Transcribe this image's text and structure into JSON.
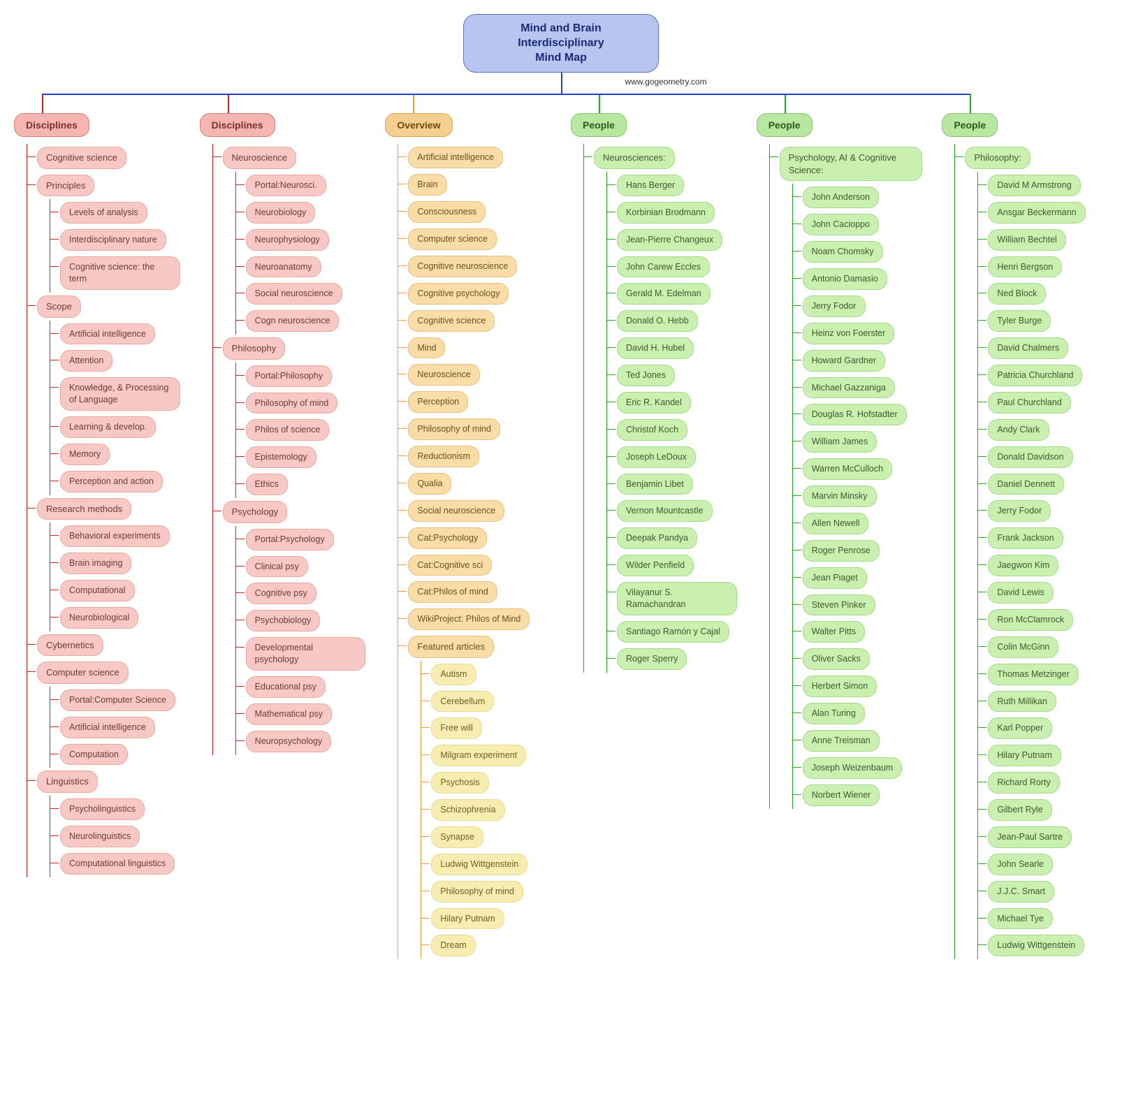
{
  "title": "Mind and Brain Interdisciplinary\nMind Map",
  "attribution": "www.gogeometry.com",
  "root_style": {
    "bg": "#b8c5ef",
    "border": "#5a6fc7",
    "text": "#1a2a7a"
  },
  "hbar_color": "#2244cc",
  "branches": [
    {
      "label": "Disciplines",
      "connector_color": "#cc2222",
      "header_style": {
        "bg": "#f5b5b0",
        "border": "#d97a72",
        "text": "#7a3030"
      },
      "node_style": {
        "bg": "#f8c9c4",
        "border": "#e8a8a0",
        "text": "#6a3a3a"
      },
      "groups": [
        {
          "label": "Cognitive science",
          "items": []
        },
        {
          "label": "Principles",
          "items": [
            "Levels of analysis",
            "Interdisciplinary nature",
            "Cognitive science: the term"
          ]
        },
        {
          "label": "Scope",
          "items": [
            "Artificial intelligence",
            "Attention",
            "Knowledge, & Processing of Language",
            "Learning & develop.",
            "Memory",
            "Perception and action"
          ]
        },
        {
          "label": "Research methods",
          "items": [
            "Behavioral experiments",
            "Brain imaging",
            "Computational",
            "Neurobiological"
          ]
        },
        {
          "label": "Cybernetics",
          "items": []
        },
        {
          "label": "Computer science",
          "items": [
            "Portal:Computer Science",
            "Artificial intelligence",
            "Computation"
          ]
        },
        {
          "label": "Linguistics",
          "items": [
            "Psycholinguistics",
            "Neurolinguistics",
            "Computational linguistics"
          ]
        }
      ]
    },
    {
      "label": "Disciplines",
      "connector_color": "#cc2222",
      "header_style": {
        "bg": "#f5b5b0",
        "border": "#d97a72",
        "text": "#7a3030"
      },
      "node_style": {
        "bg": "#f8c9c4",
        "border": "#e8a8a0",
        "text": "#6a3a3a"
      },
      "groups": [
        {
          "label": "Neuroscience",
          "items": [
            "Portal:Neurosci.",
            "Neurobiology",
            "Neurophysiology",
            "Neuroanatomy",
            "Social neuroscience",
            "Cogn neuroscience"
          ]
        },
        {
          "label": "Philosophy",
          "items": [
            "Portal:Philosophy",
            "Philosophy of mind",
            "Philos of science",
            "Epistemology",
            "Ethics"
          ]
        },
        {
          "label": "Psychology",
          "items": [
            "Portal:Psychology",
            "Clinical psy",
            "Cognitive psy",
            "Psychobiology",
            "Developmental psychology",
            "Educational psy",
            "Mathematical psy",
            "Neuropsychology"
          ]
        }
      ]
    },
    {
      "label": "Overview",
      "connector_color": "#e8a030",
      "header_style": {
        "bg": "#f5cf90",
        "border": "#daa550",
        "text": "#6a4a10"
      },
      "node_style": {
        "bg": "#f9dca6",
        "border": "#e8c080",
        "text": "#6a5020"
      },
      "items": [
        "Artificial intelligence",
        "Brain",
        "Consciousness",
        "Computer science",
        "Cognitive neuroscience",
        "Cognitive psychology",
        "Cognitive science",
        "Mind",
        "Neuroscience",
        "Perception",
        "Philosophy of mind",
        "Reductionism",
        "Qualia",
        "Social neuroscience",
        "Cat:Psychology",
        "Cat:Cognitive sci",
        "Cat:Philos of mind",
        "WikiProject: Philos of Mind"
      ],
      "groups": [
        {
          "label": "Featured articles",
          "node_style": {
            "bg": "#f8edb0",
            "border": "#e8dc90",
            "text": "#6a6020"
          },
          "items": [
            "Autism",
            "Cerebellum",
            "Free will",
            "Milgram experiment",
            "Psychosis",
            "Schizophrenia",
            "Synapse",
            "Ludwig Wittgenstein",
            "Philosophy of mind",
            "Hilary Putnam",
            "Dream"
          ]
        }
      ]
    },
    {
      "label": "People",
      "connector_color": "#22aa22",
      "header_style": {
        "bg": "#b8e8a0",
        "border": "#8ac070",
        "text": "#2a5a20"
      },
      "node_style": {
        "bg": "#caf0b0",
        "border": "#a8d890",
        "text": "#3a5a30"
      },
      "groups": [
        {
          "label": "Neurosciences:",
          "items": [
            "Hans Berger",
            "Korbinian Brodmann",
            "Jean-Pierre Changeux",
            "John Carew Eccles",
            "Gerald M. Edelman",
            "Donald O. Hebb",
            "David H. Hubel",
            "Ted Jones",
            "Eric R. Kandel",
            "Christof Koch",
            "Joseph LeDoux",
            "Benjamin Libet",
            "Vernon Mountcastle",
            "Deepak Pandya",
            "Wilder Penfield",
            "Vilayanur S. Ramachandran",
            "Santiago Ramón y Cajal",
            "Roger Sperry"
          ]
        }
      ]
    },
    {
      "label": "People",
      "connector_color": "#22aa22",
      "header_style": {
        "bg": "#b8e8a0",
        "border": "#8ac070",
        "text": "#2a5a20"
      },
      "node_style": {
        "bg": "#caf0b0",
        "border": "#a8d890",
        "text": "#3a5a30"
      },
      "groups": [
        {
          "label": "Psychology, AI & Cognitive Science:",
          "items": [
            "John Anderson",
            "John Cacioppo",
            "Noam Chomsky",
            "Antonio Damasio",
            "Jerry Fodor",
            "Heinz von Foerster",
            "Howard Gardner",
            "Michael Gazzaniga",
            "Douglas R. Hofstadter",
            "William James",
            "Warren McCulloch",
            "Marvin Minsky",
            "Allen Newell",
            "Roger Penrose",
            "Jean Piaget",
            "Steven Pinker",
            "Walter Pitts",
            "Oliver Sacks",
            "Herbert Simon",
            "Alan Turing",
            "Anne Treisman",
            "Joseph Weizenbaum",
            "Norbert Wiener"
          ]
        }
      ]
    },
    {
      "label": "People",
      "connector_color": "#22aa22",
      "header_style": {
        "bg": "#b8e8a0",
        "border": "#8ac070",
        "text": "#2a5a20"
      },
      "node_style": {
        "bg": "#caf0b0",
        "border": "#a8d890",
        "text": "#3a5a30"
      },
      "groups": [
        {
          "label": "Philosophy:",
          "items": [
            "David M Armstrong",
            "Ansgar Beckermann",
            "William Bechtel",
            "Henri Bergson",
            "Ned Block",
            "Tyler Burge",
            "David Chalmers",
            "Patricia Churchland",
            "Paul Churchland",
            "Andy Clark",
            "Donald Davidson",
            "Daniel Dennett",
            "Jerry Fodor",
            "Frank Jackson",
            "Jaegwon Kim",
            "David Lewis",
            "Ron McClamrock",
            "Colin McGinn",
            "Thomas Metzinger",
            "Ruth Millikan",
            "Karl Popper",
            "Hilary Putnam",
            "Richard Rorty",
            "Gilbert Ryle",
            "Jean-Paul Sartre",
            "John Searle",
            "J.J.C. Smart",
            "Michael Tye",
            "Ludwig Wittgenstein"
          ]
        }
      ]
    }
  ]
}
